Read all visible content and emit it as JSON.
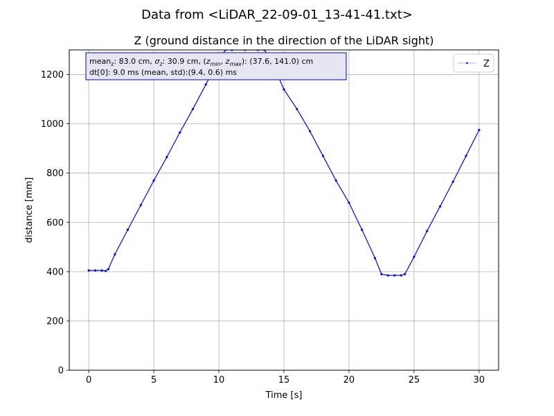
{
  "figure": {
    "suptitle": "Data from <LiDAR_22-09-01_13-41-41.txt>"
  },
  "chart_data": {
    "type": "line",
    "title": "Z (ground distance in the direction of the LiDAR sight)",
    "xlabel": "Time [s]",
    "ylabel": "distance [mm]",
    "xlim": [
      -1.5,
      31.5
    ],
    "ylim": [
      0,
      1300
    ],
    "xticks": [
      0,
      5,
      10,
      15,
      20,
      25,
      30
    ],
    "yticks": [
      0,
      200,
      400,
      600,
      800,
      1000,
      1200
    ],
    "grid": true,
    "legend": {
      "placement": "top-right"
    },
    "series": [
      {
        "name": "Z",
        "color": "#0000ff",
        "marker": ".",
        "x": [
          0,
          0.5,
          1.0,
          1.3,
          1.5,
          2.0,
          3.0,
          4.0,
          5.0,
          6.0,
          7.0,
          8.0,
          9.0,
          10.0,
          10.5,
          11.0,
          12.0,
          13.0,
          13.5,
          14.0,
          14.5,
          15.0,
          16.0,
          17.0,
          18.0,
          19.0,
          20.0,
          21.0,
          22.0,
          22.5,
          23.0,
          23.5,
          24.0,
          24.3,
          25.0,
          26.0,
          27.0,
          28.0,
          29.0,
          30.0
        ],
        "y": [
          405,
          405,
          405,
          403,
          410,
          470,
          570,
          670,
          770,
          865,
          965,
          1060,
          1160,
          1260,
          1300,
          1300,
          1300,
          1300,
          1300,
          1260,
          1200,
          1140,
          1060,
          970,
          870,
          770,
          680,
          570,
          455,
          390,
          385,
          385,
          385,
          390,
          460,
          565,
          665,
          765,
          870,
          975
        ]
      }
    ],
    "annotation": {
      "line1_parts": {
        "mean_label": "mean",
        "mean_sub": "z",
        "mean_value": ": 83.0 cm, ",
        "sigma_label": "σ",
        "sigma_sub": "z",
        "sigma_value": ": 30.9 cm, (",
        "zmin_label": "z",
        "zmin_sub": "min",
        "sep": ", ",
        "zmax_label": "z",
        "zmax_sub": "max",
        "range_value": "): (37.6, 141.0) cm"
      },
      "line2": "dt[0]: 9.0 ms (mean, std):(9.4, 0.6) ms"
    },
    "colors": {
      "series": "#0000ff",
      "grid": "#b0b0b0",
      "annotation_fill": "#e6e6f2",
      "annotation_edge": "#0000cc"
    }
  }
}
